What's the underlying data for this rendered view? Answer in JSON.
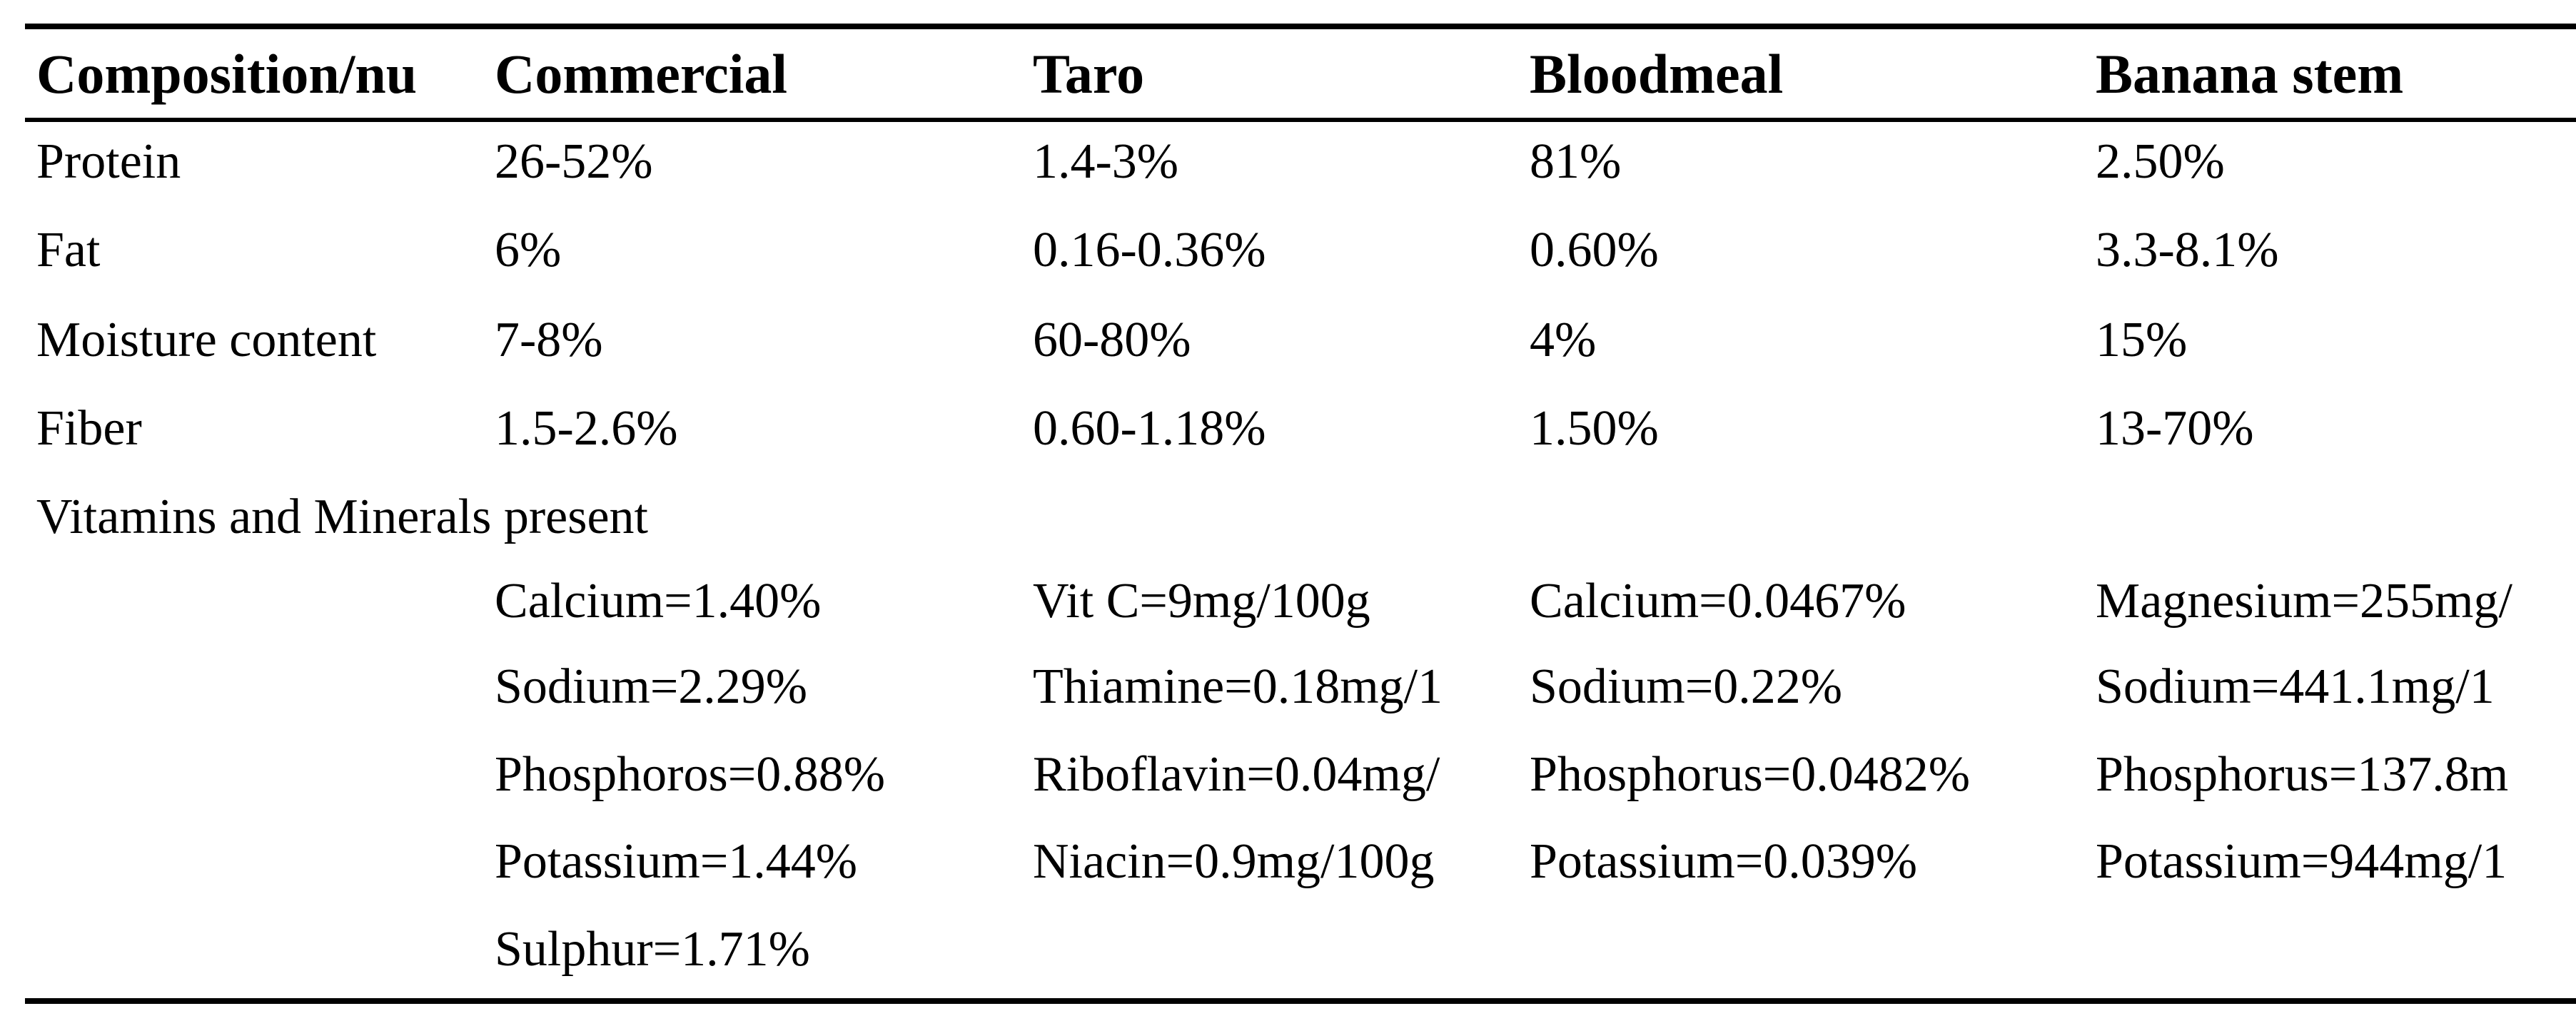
{
  "table": {
    "header": [
      "Composition/nu",
      "Commercial",
      "Taro",
      "Bloodmeal",
      "Banana stem"
    ],
    "rows": [
      [
        "Protein",
        "26-52%",
        "1.4-3%",
        "81%",
        "2.50%"
      ],
      [
        "Fat",
        "6%",
        "0.16-0.36%",
        "0.60%",
        "3.3-8.1%"
      ],
      [
        "Moisture content",
        "7-8%",
        "60-80%",
        "4%",
        "15%"
      ],
      [
        "Fiber",
        "1.5-2.6%",
        "0.60-1.18%",
        "1.50%",
        "13-70%"
      ]
    ],
    "section": "Vitamins and Minerals present",
    "minerals": [
      [
        "Calcium=1.40%",
        "Vit C=9mg/100g",
        "Calcium=0.0467%",
        "Magnesium=255mg/"
      ],
      [
        "Sodium=2.29%",
        "Thiamine=0.18mg/1",
        "Sodium=0.22%",
        "Sodium=441.1mg/1"
      ],
      [
        "Phosphoros=0.88%",
        "Riboflavin=0.04mg/",
        "Phosphorus=0.0482%",
        "Phosphorus=137.8m"
      ],
      [
        "Potassium=1.44%",
        "Niacin=0.9mg/100g",
        "Potassium=0.039%",
        "Potassium=944mg/1"
      ],
      [
        "Sulphur=1.71%"
      ]
    ]
  }
}
